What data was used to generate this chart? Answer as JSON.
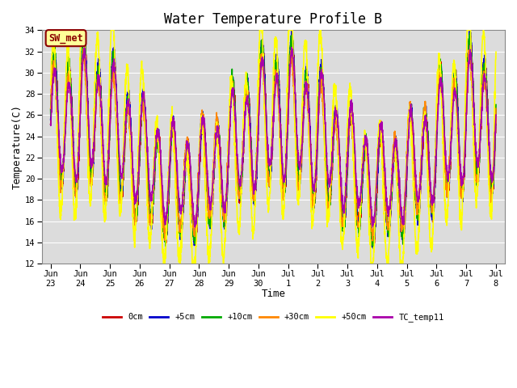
{
  "title": "Water Temperature Profile B",
  "xlabel": "Time",
  "ylabel": "Temperature(C)",
  "ylim": [
    12,
    34
  ],
  "yticks": [
    12,
    14,
    16,
    18,
    20,
    22,
    24,
    26,
    28,
    30,
    32,
    34
  ],
  "plot_bg_color": "#dcdcdc",
  "annotation_text": "SW_met",
  "annotation_bg": "#ffff99",
  "annotation_border": "#8b0000",
  "series_colors": {
    "0cm": "#cc0000",
    "+5cm": "#0000cc",
    "+10cm": "#00aa00",
    "+30cm": "#ff8800",
    "+50cm": "#ffff00",
    "TC_temp11": "#aa00aa"
  },
  "x_tick_labels": [
    "Jun\n23",
    "Jun\n24",
    "Jun\n25",
    "Jun\n26",
    "Jun\n27",
    "Jun\n28",
    "Jun\n29",
    "Jun\n30",
    "Jul\n1",
    "Jul\n2",
    "Jul\n3",
    "Jul\n4",
    "Jul\n5",
    "Jul\n6",
    "Jul\n7",
    "Jul\n8"
  ],
  "x_tick_positions": [
    0,
    1,
    2,
    3,
    4,
    5,
    6,
    7,
    8,
    9,
    10,
    11,
    12,
    13,
    14,
    15
  ],
  "line_width": 1.2,
  "grid_color": "#ffffff",
  "title_fontsize": 12,
  "axis_fontsize": 9,
  "tick_fontsize": 7.5,
  "figsize": [
    6.4,
    4.8
  ],
  "dpi": 100
}
